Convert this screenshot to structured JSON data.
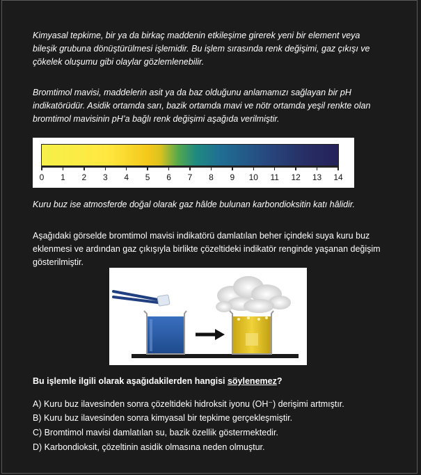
{
  "paragraphs": {
    "p1": "Kimyasal tepkime, bir ya da birkaç maddenin etkileşime girerek yeni bir element veya bileşik grubuna dönüştürülmesi işlemidir. Bu işlem sırasında renk değişimi, gaz çıkışı ve çökelek oluşumu gibi olaylar gözlemlenebilir.",
    "p2": "Bromtimol mavisi, maddelerin asit ya da baz olduğunu anlamamızı sağlayan bir pH indikatörüdür. Asidik ortamda sarı, bazik ortamda mavi ve nötr ortamda yeşil renkte olan bromtimol mavisinin pH’a bağlı renk değişimi aşağıda verilmiştir.",
    "p3": "Kuru buz ise atmosferde doğal olarak gaz hâlde bulunan karbondioksitin katı hâlidir.",
    "p4": "Aşağıdaki görselde bromtimol mavisi indikatörü damlatılan beher içindeki suya kuru buz eklenmesi ve ardından gaz çıkışıyla birlikte çözeltideki indikatör renginde yaşanan değişim gösterilmiştir."
  },
  "ph_scale": {
    "ticks": [
      "0",
      "1",
      "2",
      "3",
      "4",
      "5",
      "6",
      "7",
      "8",
      "9",
      "10",
      "11",
      "12",
      "13",
      "14"
    ]
  },
  "question": {
    "before": "Bu işlemle ilgili olarak aşağıdakilerden hangisi ",
    "underlined": "söylenemez",
    "after": "?"
  },
  "options": {
    "a": "A) Kuru buz ilavesinden sonra çözeltideki hidroksit iyonu (OH⁻) derişimi artmıştır.",
    "b": "B) Kuru buz ilavesinden sonra kimyasal bir tepkime gerçekleşmiştir.",
    "c": "C) Bromtimol mavisi damlatılan su, bazik özellik göstermektedir.",
    "d": "D) Karbondioksit, çözeltinin asidik olmasına neden olmuştur."
  },
  "colors": {
    "background": "#1b1b1b",
    "text": "#ffffff",
    "blue_solution": "#2f5ea8",
    "yellow_solution": "#e6c31f"
  }
}
